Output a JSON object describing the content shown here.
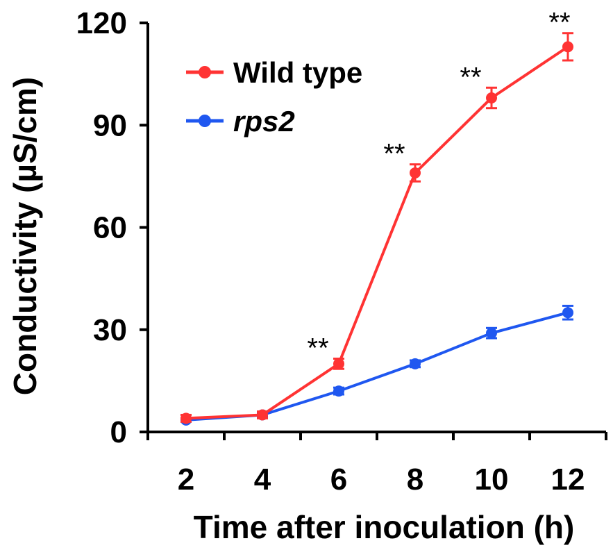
{
  "chart_data": {
    "type": "line",
    "xlabel": "Time after inoculation (h)",
    "ylabel": "Conductivity (µS/cm)",
    "x": [
      2,
      4,
      6,
      8,
      10,
      12
    ],
    "xlim": [
      1,
      13
    ],
    "ylim": [
      0,
      120
    ],
    "yticks": [
      0,
      30,
      60,
      90,
      120
    ],
    "grid": false,
    "legend_position": "top-left",
    "series": [
      {
        "name": "Wild type",
        "color": "#ff3333",
        "values": [
          4,
          5,
          20,
          76,
          98,
          113
        ],
        "errors": [
          1,
          1,
          1.5,
          2.5,
          3,
          4
        ]
      },
      {
        "name": "rps2",
        "name_italic": true,
        "color": "#1f57f0",
        "values": [
          3.5,
          5,
          12,
          20,
          29,
          35
        ],
        "errors": [
          0.5,
          0.5,
          1,
          1,
          1.5,
          2
        ]
      }
    ],
    "annotations": [
      {
        "x": 6,
        "text": "**"
      },
      {
        "x": 8,
        "text": "**"
      },
      {
        "x": 10,
        "text": "**"
      },
      {
        "x": 12,
        "text": "**"
      }
    ]
  }
}
